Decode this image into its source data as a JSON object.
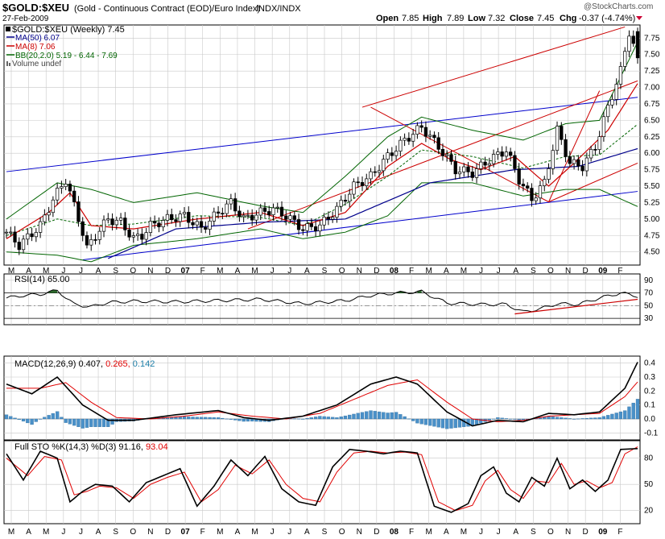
{
  "header": {
    "symbol": "$GOLD:$XEU",
    "description": "(Gold - Continuous Contract (EOD)/Euro Index)",
    "exchange": "INDX/INDX",
    "date": "27-Feb-2009",
    "watermark": "@StockCharts.com",
    "ohlc": {
      "open_label": "Open",
      "open": "7.85",
      "high_label": "High",
      "high": "7.89",
      "low_label": "Low",
      "low": "7.32",
      "close_label": "Close",
      "close": "7.45",
      "chg_label": "Chg",
      "chg": "-0.37 (-4.74%)"
    }
  },
  "legend": {
    "symbol_line": "$GOLD:$XEU (Weekly) 7.45",
    "ma50": "MA(50) 6.07",
    "ma8": "MA(8) 7.06",
    "bb": "BB(20,2.0) 5.19 - 6.44 - 7.69",
    "volume": "Volume undef"
  },
  "colors": {
    "ma50": "#00008b",
    "ma8": "#cc0000",
    "bb": "#006400",
    "trend_blue": "#0000cc",
    "trend_red": "#cc0000",
    "rsi_fill": "#2e6b2e",
    "macd_hist": "#4a90c8",
    "macd_signal": "#e00000",
    "macd_hist_text": "#1e7fa8",
    "down_arrow": "#cc0033"
  },
  "panels": {
    "rsi": {
      "label": "RSI(14) 65.00"
    },
    "macd": {
      "label_prefix": "MACD(12,26,9)",
      "macd": "0.407,",
      "signal": "0.265,",
      "hist": "0.142"
    },
    "sto": {
      "label_prefix": "Full STO %K(14,3) %D(3)",
      "k": "91.16,",
      "d": "93.04"
    }
  },
  "x_axis": {
    "months": [
      "M",
      "A",
      "M",
      "J",
      "J",
      "A",
      "S",
      "O",
      "N",
      "D",
      "07",
      "F",
      "M",
      "A",
      "M",
      "J",
      "J",
      "A",
      "S",
      "O",
      "N",
      "D",
      "08",
      "F",
      "M",
      "A",
      "M",
      "J",
      "J",
      "A",
      "S",
      "O",
      "N",
      "D",
      "09",
      "F"
    ],
    "bold": [
      "07",
      "08",
      "09"
    ]
  },
  "chart_data": [
    {
      "type": "candlestick",
      "title": "$GOLD:$XEU (Weekly)",
      "y_ticks": [
        "4.50",
        "4.75",
        "5.00",
        "5.25",
        "5.50",
        "5.75",
        "6.00",
        "6.25",
        "6.50",
        "6.75",
        "7.00",
        "7.25",
        "7.50",
        "7.75"
      ],
      "ylim": [
        4.3,
        7.95
      ],
      "x_range_weeks": 150,
      "price_anchors": [
        [
          0,
          4.8
        ],
        [
          3,
          4.6
        ],
        [
          8,
          4.9
        ],
        [
          11,
          5.3
        ],
        [
          14,
          5.6
        ],
        [
          16,
          5.2
        ],
        [
          18,
          4.8
        ],
        [
          19,
          4.55
        ],
        [
          21,
          4.75
        ],
        [
          24,
          5.0
        ],
        [
          27,
          4.95
        ],
        [
          30,
          4.7
        ],
        [
          32,
          4.75
        ],
        [
          34,
          4.9
        ],
        [
          38,
          5.0
        ],
        [
          42,
          5.05
        ],
        [
          46,
          4.85
        ],
        [
          50,
          5.1
        ],
        [
          53,
          5.25
        ],
        [
          56,
          5.0
        ],
        [
          60,
          5.1
        ],
        [
          63,
          5.15
        ],
        [
          66,
          5.05
        ],
        [
          70,
          4.85
        ],
        [
          74,
          4.9
        ],
        [
          78,
          5.15
        ],
        [
          82,
          5.5
        ],
        [
          86,
          5.65
        ],
        [
          90,
          5.95
        ],
        [
          94,
          6.2
        ],
        [
          98,
          6.4
        ],
        [
          102,
          6.1
        ],
        [
          106,
          5.75
        ],
        [
          110,
          5.7
        ],
        [
          114,
          5.9
        ],
        [
          118,
          6.05
        ],
        [
          121,
          5.6
        ],
        [
          124,
          5.3
        ],
        [
          127,
          5.55
        ],
        [
          130,
          6.35
        ],
        [
          133,
          5.85
        ],
        [
          136,
          5.8
        ],
        [
          139,
          6.1
        ],
        [
          142,
          6.7
        ],
        [
          145,
          7.25
        ],
        [
          147,
          7.85
        ],
        [
          149,
          7.45
        ]
      ],
      "ma50_anchors": [
        [
          24,
          4.4
        ],
        [
          40,
          4.85
        ],
        [
          60,
          4.95
        ],
        [
          80,
          5.0
        ],
        [
          100,
          5.55
        ],
        [
          120,
          5.75
        ],
        [
          135,
          5.8
        ],
        [
          149,
          6.07
        ]
      ],
      "ma8_anchors": [
        [
          0,
          4.7
        ],
        [
          10,
          5.1
        ],
        [
          15,
          5.4
        ],
        [
          20,
          4.9
        ],
        [
          30,
          4.85
        ],
        [
          45,
          5.0
        ],
        [
          60,
          5.1
        ],
        [
          70,
          4.9
        ],
        [
          80,
          5.1
        ],
        [
          90,
          5.8
        ],
        [
          98,
          6.15
        ],
        [
          105,
          5.9
        ],
        [
          112,
          5.75
        ],
        [
          120,
          5.95
        ],
        [
          128,
          5.5
        ],
        [
          134,
          5.85
        ],
        [
          142,
          6.35
        ],
        [
          149,
          7.06
        ]
      ],
      "bb_upper_anchors": [
        [
          0,
          5.0
        ],
        [
          12,
          5.55
        ],
        [
          20,
          5.45
        ],
        [
          30,
          5.25
        ],
        [
          45,
          5.4
        ],
        [
          60,
          5.2
        ],
        [
          70,
          5.1
        ],
        [
          80,
          5.65
        ],
        [
          90,
          6.25
        ],
        [
          98,
          6.55
        ],
        [
          110,
          6.35
        ],
        [
          122,
          6.2
        ],
        [
          132,
          6.45
        ],
        [
          140,
          6.5
        ],
        [
          149,
          7.69
        ]
      ],
      "bb_lower_anchors": [
        [
          0,
          4.5
        ],
        [
          12,
          4.45
        ],
        [
          20,
          4.35
        ],
        [
          30,
          4.6
        ],
        [
          45,
          4.7
        ],
        [
          60,
          4.85
        ],
        [
          70,
          4.7
        ],
        [
          80,
          4.8
        ],
        [
          90,
          5.05
        ],
        [
          98,
          5.55
        ],
        [
          110,
          5.55
        ],
        [
          122,
          5.35
        ],
        [
          132,
          5.45
        ],
        [
          140,
          5.45
        ],
        [
          149,
          5.19
        ]
      ]
    },
    {
      "type": "line",
      "title": "RSI(14)",
      "y_ticks": [
        "90",
        "70",
        "50",
        "30"
      ],
      "ylim": [
        20,
        100
      ],
      "last": 65.0,
      "anchors": [
        [
          0,
          62
        ],
        [
          4,
          66
        ],
        [
          8,
          68
        ],
        [
          12,
          74
        ],
        [
          16,
          52
        ],
        [
          20,
          48
        ],
        [
          24,
          55
        ],
        [
          30,
          57
        ],
        [
          40,
          56
        ],
        [
          50,
          58
        ],
        [
          60,
          60
        ],
        [
          70,
          53
        ],
        [
          80,
          58
        ],
        [
          86,
          66
        ],
        [
          92,
          70
        ],
        [
          98,
          72
        ],
        [
          104,
          54
        ],
        [
          112,
          52
        ],
        [
          118,
          52
        ],
        [
          122,
          40
        ],
        [
          126,
          45
        ],
        [
          130,
          53
        ],
        [
          135,
          52
        ],
        [
          140,
          62
        ],
        [
          145,
          70
        ],
        [
          149,
          65
        ]
      ]
    },
    {
      "type": "line",
      "title": "MACD(12,26,9)",
      "y_ticks": [
        "0.4",
        "0.3",
        "0.2",
        "0.1",
        "0.0",
        "-0.1"
      ],
      "ylim": [
        -0.15,
        0.45
      ],
      "macd_anchors": [
        [
          0,
          0.25
        ],
        [
          6,
          0.18
        ],
        [
          12,
          0.3
        ],
        [
          18,
          0.1
        ],
        [
          24,
          -0.01
        ],
        [
          30,
          -0.01
        ],
        [
          40,
          0.03
        ],
        [
          50,
          0.06
        ],
        [
          56,
          0.01
        ],
        [
          62,
          -0.01
        ],
        [
          70,
          0.02
        ],
        [
          78,
          0.1
        ],
        [
          86,
          0.25
        ],
        [
          92,
          0.3
        ],
        [
          97,
          0.25
        ],
        [
          104,
          0.05
        ],
        [
          110,
          -0.05
        ],
        [
          116,
          -0.01
        ],
        [
          122,
          -0.02
        ],
        [
          128,
          0.04
        ],
        [
          134,
          0.03
        ],
        [
          140,
          0.05
        ],
        [
          146,
          0.22
        ],
        [
          149,
          0.407
        ]
      ],
      "signal_anchors": [
        [
          0,
          0.22
        ],
        [
          8,
          0.22
        ],
        [
          14,
          0.26
        ],
        [
          20,
          0.12
        ],
        [
          26,
          0.01
        ],
        [
          34,
          0.0
        ],
        [
          42,
          0.02
        ],
        [
          50,
          0.05
        ],
        [
          58,
          0.02
        ],
        [
          66,
          0.0
        ],
        [
          74,
          0.04
        ],
        [
          82,
          0.14
        ],
        [
          90,
          0.24
        ],
        [
          97,
          0.28
        ],
        [
          104,
          0.12
        ],
        [
          110,
          0.0
        ],
        [
          116,
          -0.02
        ],
        [
          122,
          -0.01
        ],
        [
          128,
          0.02
        ],
        [
          134,
          0.03
        ],
        [
          140,
          0.04
        ],
        [
          146,
          0.16
        ],
        [
          149,
          0.265
        ]
      ]
    },
    {
      "type": "line",
      "title": "Full STO %K(14,3) %D(3)",
      "y_ticks": [
        "80",
        "50",
        "20"
      ],
      "ylim": [
        5,
        100
      ],
      "k_anchors": [
        [
          0,
          85
        ],
        [
          4,
          55
        ],
        [
          8,
          88
        ],
        [
          12,
          80
        ],
        [
          15,
          30
        ],
        [
          18,
          42
        ],
        [
          21,
          50
        ],
        [
          25,
          48
        ],
        [
          29,
          30
        ],
        [
          33,
          52
        ],
        [
          37,
          60
        ],
        [
          41,
          68
        ],
        [
          45,
          25
        ],
        [
          49,
          48
        ],
        [
          53,
          78
        ],
        [
          57,
          60
        ],
        [
          61,
          82
        ],
        [
          65,
          45
        ],
        [
          69,
          30
        ],
        [
          73,
          26
        ],
        [
          77,
          70
        ],
        [
          81,
          90
        ],
        [
          85,
          88
        ],
        [
          89,
          85
        ],
        [
          93,
          88
        ],
        [
          97,
          86
        ],
        [
          101,
          25
        ],
        [
          105,
          18
        ],
        [
          109,
          28
        ],
        [
          112,
          60
        ],
        [
          115,
          70
        ],
        [
          118,
          40
        ],
        [
          121,
          30
        ],
        [
          124,
          58
        ],
        [
          127,
          48
        ],
        [
          130,
          80
        ],
        [
          133,
          45
        ],
        [
          136,
          55
        ],
        [
          139,
          42
        ],
        [
          142,
          55
        ],
        [
          145,
          90
        ],
        [
          149,
          91
        ]
      ],
      "d_anchors": [
        [
          0,
          80
        ],
        [
          5,
          60
        ],
        [
          9,
          82
        ],
        [
          13,
          78
        ],
        [
          16,
          38
        ],
        [
          19,
          42
        ],
        [
          22,
          48
        ],
        [
          26,
          46
        ],
        [
          30,
          34
        ],
        [
          34,
          50
        ],
        [
          38,
          58
        ],
        [
          42,
          64
        ],
        [
          46,
          30
        ],
        [
          50,
          44
        ],
        [
          54,
          72
        ],
        [
          58,
          62
        ],
        [
          62,
          78
        ],
        [
          66,
          50
        ],
        [
          70,
          34
        ],
        [
          74,
          30
        ],
        [
          78,
          64
        ],
        [
          82,
          86
        ],
        [
          86,
          88
        ],
        [
          90,
          86
        ],
        [
          94,
          87
        ],
        [
          98,
          84
        ],
        [
          102,
          30
        ],
        [
          106,
          20
        ],
        [
          110,
          26
        ],
        [
          113,
          54
        ],
        [
          116,
          66
        ],
        [
          119,
          44
        ],
        [
          122,
          34
        ],
        [
          125,
          54
        ],
        [
          128,
          52
        ],
        [
          131,
          74
        ],
        [
          134,
          50
        ],
        [
          137,
          54
        ],
        [
          140,
          46
        ],
        [
          143,
          52
        ],
        [
          146,
          85
        ],
        [
          149,
          93
        ]
      ]
    }
  ]
}
